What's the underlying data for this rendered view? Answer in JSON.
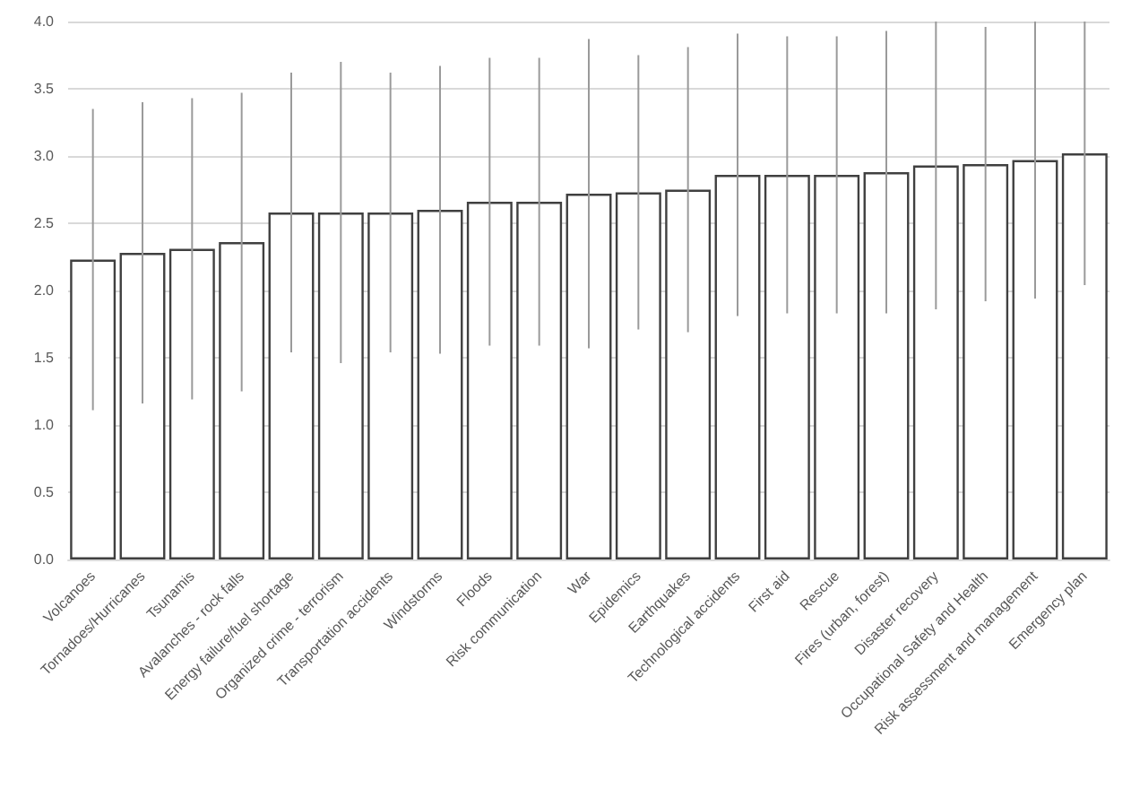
{
  "chart_data": {
    "type": "bar",
    "categories": [
      "Volcanoes",
      "Tornadoes/Hurricanes",
      "Tsunamis",
      "Avalanches - rock falls",
      "Energy failure/fuel shortage",
      "Organized crime - terrorism",
      "Transportation accidents",
      "Windstorms",
      "Floods",
      "Risk communication",
      "War",
      "Epidemics",
      "Earthquakes",
      "Technological accidents",
      "First aid",
      "Rescue",
      "Fires (urban, forest)",
      "Disaster recovery",
      "Occupational Safety and Health",
      "Risk assessment and management",
      "Emergency plan"
    ],
    "values": [
      2.23,
      2.28,
      2.31,
      2.36,
      2.58,
      2.58,
      2.58,
      2.6,
      2.66,
      2.66,
      2.72,
      2.73,
      2.75,
      2.86,
      2.86,
      2.86,
      2.88,
      2.93,
      2.94,
      2.97,
      3.02
    ],
    "errors": [
      1.12,
      1.12,
      1.12,
      1.11,
      1.04,
      1.12,
      1.04,
      1.07,
      1.07,
      1.07,
      1.15,
      1.02,
      1.06,
      1.05,
      1.03,
      1.03,
      1.05,
      1.07,
      1.02,
      1.03,
      0.98
    ],
    "color": "#ffffff",
    "ylim": [
      0,
      4
    ],
    "yticks": [
      {
        "value": 0,
        "label": "0.0"
      },
      {
        "value": 0.5,
        "label": "0.5"
      },
      {
        "value": 1,
        "label": "1.0"
      },
      {
        "value": 1.5,
        "label": "1.5"
      },
      {
        "value": 2,
        "label": "2.0"
      },
      {
        "value": 2.5,
        "label": "2.5"
      },
      {
        "value": 3,
        "label": "3.0"
      },
      {
        "value": 3.5,
        "label": "3.5"
      },
      {
        "value": 4,
        "label": "4.0"
      }
    ],
    "grid": "y"
  }
}
